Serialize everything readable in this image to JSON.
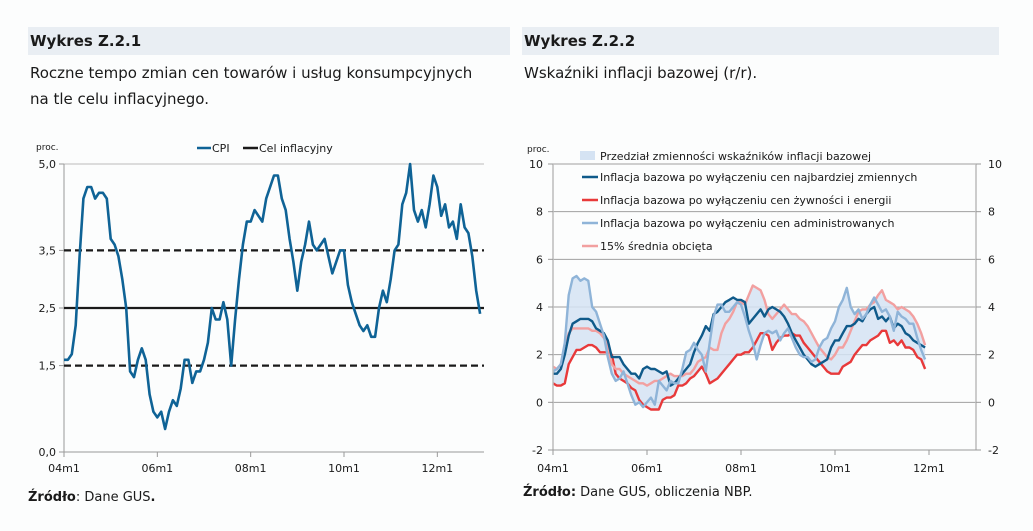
{
  "left": {
    "header": "Wykres Z.2.1",
    "subtitle_line1": "Roczne tempo zmian cen towarów i usług konsumpcyjnych",
    "subtitle_line2": "na tle celu inflacyjnego.",
    "source_label": "Źródło",
    "source_text": ": Dane GUS",
    "source_end": "."
  },
  "right": {
    "header": "Wykres Z.2.2",
    "subtitle_line1": "Wskaźniki inflacji bazowej (r/r).",
    "source_label": "Źródło:",
    "source_text": " Dane GUS, obliczenia NBP."
  },
  "chart_data": [
    {
      "type": "line",
      "ylabel": "proc.",
      "ylim": [
        0,
        5
      ],
      "yticks": [
        "0,0",
        "1,5",
        "2,5",
        "3,5",
        "5,0"
      ],
      "ytick_values": [
        0,
        1.5,
        2.5,
        3.5,
        5.0
      ],
      "xticks": [
        "04m1",
        "06m1",
        "08m1",
        "10m1",
        "12m1"
      ],
      "xtick_months": [
        0,
        24,
        48,
        72,
        96
      ],
      "x_start": "04m1",
      "legend": [
        "CPI",
        "Cel inflacyjny"
      ],
      "legend_position": "top",
      "reference_lines": [
        {
          "name": "Cel inflacyjny",
          "value": 2.5,
          "style": "solid",
          "color": "#1a1a1a"
        },
        {
          "name": "upper band",
          "value": 3.5,
          "style": "dashed",
          "color": "#1a1a1a"
        },
        {
          "name": "lower band",
          "value": 1.5,
          "style": "dashed",
          "color": "#1a1a1a"
        }
      ],
      "series": [
        {
          "name": "CPI",
          "color": "#0f6396",
          "values": [
            1.6,
            1.6,
            1.7,
            2.2,
            3.4,
            4.4,
            4.6,
            4.6,
            4.4,
            4.5,
            4.5,
            4.4,
            3.7,
            3.6,
            3.4,
            3.0,
            2.5,
            1.4,
            1.3,
            1.6,
            1.8,
            1.6,
            1.0,
            0.7,
            0.6,
            0.7,
            0.4,
            0.7,
            0.9,
            0.8,
            1.1,
            1.6,
            1.6,
            1.2,
            1.4,
            1.4,
            1.6,
            1.9,
            2.5,
            2.3,
            2.3,
            2.6,
            2.3,
            1.5,
            2.3,
            3.0,
            3.6,
            4.0,
            4.0,
            4.2,
            4.1,
            4.0,
            4.4,
            4.6,
            4.8,
            4.8,
            4.4,
            4.2,
            3.7,
            3.3,
            2.8,
            3.3,
            3.6,
            4.0,
            3.6,
            3.5,
            3.6,
            3.7,
            3.4,
            3.1,
            3.3,
            3.5,
            3.5,
            2.9,
            2.6,
            2.4,
            2.2,
            2.1,
            2.2,
            2.0,
            2.0,
            2.5,
            2.8,
            2.6,
            3.0,
            3.5,
            3.6,
            4.3,
            4.5,
            5.0,
            4.2,
            4.0,
            4.2,
            3.9,
            4.3,
            4.8,
            4.6,
            4.1,
            4.3,
            3.9,
            4.0,
            3.7,
            4.3,
            3.9,
            3.8,
            3.4,
            2.8,
            2.4
          ]
        }
      ]
    },
    {
      "type": "line",
      "ylabel": "proc.",
      "ylim": [
        -2,
        10
      ],
      "yticks": [
        "-2",
        "0",
        "2",
        "4",
        "6",
        "8",
        "10"
      ],
      "ytick_values": [
        -2,
        0,
        2,
        4,
        6,
        8,
        10
      ],
      "xticks": [
        "04m1",
        "06m1",
        "08m1",
        "10m1",
        "12m1"
      ],
      "xtick_months": [
        0,
        24,
        48,
        72,
        96
      ],
      "x_start": "04m1",
      "grid": true,
      "legend_position": "top",
      "band": {
        "name": "Przedział zmienności wskaźników inflacji bazowej",
        "color": "#d5e3f3"
      },
      "series": [
        {
          "name": "Inflacja bazowa po wyłączeniu cen najbardziej zmiennych",
          "color": "#0f5a8a",
          "values": [
            1.2,
            1.2,
            1.4,
            2.0,
            2.8,
            3.3,
            3.4,
            3.5,
            3.5,
            3.5,
            3.4,
            3.1,
            3.0,
            2.9,
            2.6,
            1.9,
            1.9,
            1.9,
            1.6,
            1.4,
            1.2,
            1.2,
            1.0,
            1.4,
            1.5,
            1.4,
            1.4,
            1.3,
            1.2,
            1.3,
            0.7,
            0.8,
            1.0,
            1.2,
            1.4,
            1.6,
            2.1,
            2.5,
            2.8,
            3.2,
            3.0,
            3.7,
            3.8,
            4.0,
            4.2,
            4.3,
            4.4,
            4.3,
            4.3,
            4.2,
            3.3,
            3.5,
            3.7,
            3.9,
            3.6,
            3.9,
            4.0,
            3.9,
            3.8,
            3.6,
            3.3,
            2.9,
            2.6,
            2.3,
            2.0,
            1.8,
            1.6,
            1.5,
            1.6,
            1.7,
            1.8,
            2.3,
            2.6,
            2.6,
            2.9,
            3.2,
            3.2,
            3.3,
            3.5,
            3.4,
            3.7,
            3.9,
            4.0,
            3.5,
            3.6,
            3.4,
            3.6,
            3.1,
            3.3,
            3.2,
            2.9,
            2.8,
            2.6,
            2.5,
            2.4,
            2.3
          ]
        },
        {
          "name": "Inflacja bazowa po wyłączeniu cen żywności i energii",
          "color": "#e8393a",
          "values": [
            0.8,
            0.7,
            0.7,
            0.8,
            1.6,
            1.9,
            2.2,
            2.2,
            2.3,
            2.4,
            2.4,
            2.3,
            2.1,
            2.1,
            2.1,
            2.0,
            1.2,
            1.0,
            0.9,
            0.8,
            0.6,
            0.5,
            0.1,
            -0.1,
            -0.2,
            -0.3,
            -0.3,
            -0.3,
            0.1,
            0.2,
            0.2,
            0.3,
            0.7,
            0.7,
            0.8,
            1.0,
            1.1,
            1.3,
            1.5,
            1.2,
            0.8,
            0.9,
            1.0,
            1.2,
            1.4,
            1.6,
            1.8,
            2.0,
            2.0,
            2.1,
            2.1,
            2.3,
            2.6,
            2.9,
            2.9,
            2.8,
            2.2,
            2.5,
            2.7,
            2.8,
            2.8,
            2.9,
            2.8,
            2.8,
            2.5,
            2.3,
            2.1,
            1.9,
            1.7,
            1.5,
            1.3,
            1.2,
            1.2,
            1.2,
            1.5,
            1.6,
            1.7,
            2.0,
            2.2,
            2.4,
            2.4,
            2.6,
            2.7,
            2.8,
            3.0,
            3.0,
            2.5,
            2.6,
            2.4,
            2.6,
            2.3,
            2.3,
            2.2,
            1.9,
            1.8,
            1.4
          ]
        },
        {
          "name": "Inflacja bazowa po wyłączeniu cen administrowanych",
          "color": "#8fb4d8",
          "values": [
            1.3,
            1.4,
            1.6,
            2.5,
            4.5,
            5.2,
            5.3,
            5.1,
            5.2,
            5.1,
            4.0,
            3.8,
            3.3,
            2.8,
            1.9,
            1.2,
            0.9,
            1.0,
            1.3,
            0.8,
            0.3,
            -0.1,
            0.0,
            -0.2,
            0.0,
            0.2,
            -0.1,
            0.9,
            0.7,
            0.5,
            0.9,
            0.8,
            0.8,
            1.4,
            2.1,
            2.2,
            2.5,
            2.2,
            2.0,
            1.3,
            2.5,
            3.6,
            4.1,
            4.1,
            3.8,
            3.8,
            4.0,
            4.2,
            4.1,
            3.6,
            3.0,
            2.5,
            1.8,
            2.4,
            2.9,
            3.0,
            2.9,
            3.0,
            2.6,
            2.9,
            3.1,
            2.7,
            2.3,
            2.0,
            1.9,
            1.9,
            1.7,
            1.8,
            2.3,
            2.6,
            2.7,
            3.1,
            3.4,
            4.0,
            4.3,
            4.8,
            4.0,
            3.7,
            3.9,
            3.5,
            3.7,
            4.1,
            4.4,
            4.1,
            3.8,
            3.9,
            3.6,
            3.0,
            3.8,
            3.6,
            3.5,
            3.3,
            3.3,
            2.7,
            2.2,
            1.8
          ]
        },
        {
          "name": "15% średnia obcięta",
          "color": "#f2a0a0",
          "values": [
            1.5,
            1.4,
            1.6,
            2.2,
            2.9,
            3.1,
            3.1,
            3.1,
            3.1,
            3.1,
            3.0,
            3.0,
            2.9,
            2.7,
            2.4,
            1.6,
            1.4,
            1.4,
            1.2,
            1.1,
            1.0,
            0.9,
            0.8,
            0.8,
            0.7,
            0.8,
            0.9,
            0.9,
            1.0,
            1.1,
            1.2,
            1.1,
            1.1,
            1.1,
            1.2,
            1.2,
            1.4,
            1.7,
            1.8,
            1.9,
            2.3,
            2.2,
            2.2,
            2.9,
            3.3,
            3.5,
            3.8,
            4.2,
            4.2,
            4.1,
            4.5,
            4.9,
            4.8,
            4.7,
            4.3,
            3.7,
            3.5,
            3.7,
            3.9,
            4.1,
            3.9,
            3.7,
            3.7,
            3.5,
            3.4,
            3.2,
            2.9,
            2.6,
            2.3,
            2.1,
            1.9,
            1.8,
            2.0,
            2.3,
            2.3,
            2.6,
            3.0,
            3.4,
            3.8,
            3.9,
            3.9,
            4.1,
            4.2,
            4.5,
            4.7,
            4.3,
            4.2,
            4.1,
            3.9,
            4.0,
            3.9,
            3.8,
            3.6,
            3.3,
            2.9,
            2.4
          ]
        }
      ]
    }
  ]
}
